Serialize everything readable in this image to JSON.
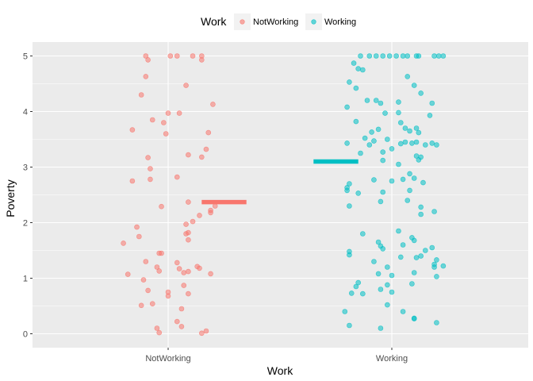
{
  "chart_data": {
    "type": "scatter",
    "subtype": "jitter-strip-with-mean-bars",
    "xlabel": "Work",
    "ylabel": "Poverty",
    "categories": [
      "NotWorking",
      "Working"
    ],
    "yticks": [
      0,
      1,
      2,
      3,
      4,
      5
    ],
    "ylim": [
      -0.25,
      5.25
    ],
    "grid": true,
    "legend": {
      "title": "Work",
      "placement": "top",
      "entries": [
        "NotWorking",
        "Working"
      ]
    },
    "colors": {
      "NotWorking": "#F8766D",
      "Working": "#00BFC4",
      "panel": "#EBEBEB",
      "grid": "#FFFFFF"
    },
    "series": [
      {
        "name": "NotWorking",
        "mean": 2.37,
        "points": [
          {
            "x": -0.1,
            "y": 5.0
          },
          {
            "x": 0.01,
            "y": 5.0
          },
          {
            "x": 0.04,
            "y": 5.0
          },
          {
            "x": 0.11,
            "y": 5.0
          },
          {
            "x": 0.15,
            "y": 4.93
          },
          {
            "x": 0.15,
            "y": 5.0
          },
          {
            "x": -0.09,
            "y": 4.93
          },
          {
            "x": -0.1,
            "y": 4.63
          },
          {
            "x": 0.08,
            "y": 4.47
          },
          {
            "x": -0.12,
            "y": 4.3
          },
          {
            "x": 0.2,
            "y": 4.13
          },
          {
            "x": 0.0,
            "y": 3.97
          },
          {
            "x": 0.05,
            "y": 3.97
          },
          {
            "x": -0.07,
            "y": 3.85
          },
          {
            "x": -0.02,
            "y": 3.8
          },
          {
            "x": -0.16,
            "y": 3.67
          },
          {
            "x": 0.18,
            "y": 3.62
          },
          {
            "x": -0.01,
            "y": 3.6
          },
          {
            "x": 0.17,
            "y": 3.32
          },
          {
            "x": 0.09,
            "y": 3.22
          },
          {
            "x": 0.15,
            "y": 3.18
          },
          {
            "x": -0.09,
            "y": 3.17
          },
          {
            "x": -0.08,
            "y": 2.97
          },
          {
            "x": 0.04,
            "y": 2.82
          },
          {
            "x": -0.08,
            "y": 2.78
          },
          {
            "x": -0.16,
            "y": 2.75
          },
          {
            "x": 0.09,
            "y": 2.37
          },
          {
            "x": 0.21,
            "y": 2.3
          },
          {
            "x": -0.03,
            "y": 2.29
          },
          {
            "x": 0.19,
            "y": 2.22
          },
          {
            "x": 0.19,
            "y": 2.18
          },
          {
            "x": 0.14,
            "y": 2.13
          },
          {
            "x": 0.08,
            "y": 1.97
          },
          {
            "x": 0.11,
            "y": 2.02
          },
          {
            "x": -0.14,
            "y": 1.92
          },
          {
            "x": 0.09,
            "y": 1.82
          },
          {
            "x": 0.08,
            "y": 1.8
          },
          {
            "x": -0.13,
            "y": 1.75
          },
          {
            "x": 0.09,
            "y": 1.69
          },
          {
            "x": -0.2,
            "y": 1.63
          },
          {
            "x": -0.04,
            "y": 1.45
          },
          {
            "x": -0.03,
            "y": 1.45
          },
          {
            "x": -0.1,
            "y": 1.3
          },
          {
            "x": 0.04,
            "y": 1.28
          },
          {
            "x": -0.05,
            "y": 1.2
          },
          {
            "x": 0.13,
            "y": 1.21
          },
          {
            "x": 0.14,
            "y": 1.18
          },
          {
            "x": 0.05,
            "y": 1.17
          },
          {
            "x": 0.09,
            "y": 1.12
          },
          {
            "x": -0.04,
            "y": 1.13
          },
          {
            "x": 0.07,
            "y": 1.1
          },
          {
            "x": 0.19,
            "y": 1.08
          },
          {
            "x": -0.18,
            "y": 1.07
          },
          {
            "x": -0.11,
            "y": 0.97
          },
          {
            "x": 0.07,
            "y": 0.87
          },
          {
            "x": -0.09,
            "y": 0.78
          },
          {
            "x": 0.0,
            "y": 0.75
          },
          {
            "x": 0.09,
            "y": 0.72
          },
          {
            "x": 0.0,
            "y": 0.68
          },
          {
            "x": -0.07,
            "y": 0.54
          },
          {
            "x": -0.12,
            "y": 0.51
          },
          {
            "x": 0.06,
            "y": 0.45
          },
          {
            "x": 0.04,
            "y": 0.22
          },
          {
            "x": 0.06,
            "y": 0.13
          },
          {
            "x": -0.05,
            "y": 0.1
          },
          {
            "x": 0.17,
            "y": 0.05
          },
          {
            "x": -0.04,
            "y": 0.02
          },
          {
            "x": 0.15,
            "y": 0.01
          }
        ]
      },
      {
        "name": "Working",
        "mean": 3.1,
        "points": [
          {
            "x": -0.14,
            "y": 5.0
          },
          {
            "x": -0.1,
            "y": 5.0
          },
          {
            "x": -0.07,
            "y": 5.0
          },
          {
            "x": -0.04,
            "y": 5.0
          },
          {
            "x": -0.01,
            "y": 5.0
          },
          {
            "x": 0.02,
            "y": 5.0
          },
          {
            "x": 0.05,
            "y": 5.0
          },
          {
            "x": 0.07,
            "y": 5.0
          },
          {
            "x": 0.11,
            "y": 5.0
          },
          {
            "x": 0.12,
            "y": 5.0
          },
          {
            "x": 0.19,
            "y": 5.0
          },
          {
            "x": 0.21,
            "y": 5.0
          },
          {
            "x": 0.23,
            "y": 5.0
          },
          {
            "x": -0.17,
            "y": 4.87
          },
          {
            "x": -0.15,
            "y": 4.77
          },
          {
            "x": -0.13,
            "y": 4.75
          },
          {
            "x": 0.07,
            "y": 4.63
          },
          {
            "x": -0.19,
            "y": 4.53
          },
          {
            "x": 0.1,
            "y": 4.47
          },
          {
            "x": -0.16,
            "y": 4.42
          },
          {
            "x": 0.13,
            "y": 4.33
          },
          {
            "x": -0.07,
            "y": 4.2
          },
          {
            "x": -0.11,
            "y": 4.2
          },
          {
            "x": -0.05,
            "y": 4.15
          },
          {
            "x": 0.03,
            "y": 4.17
          },
          {
            "x": 0.18,
            "y": 4.15
          },
          {
            "x": -0.2,
            "y": 4.08
          },
          {
            "x": -0.03,
            "y": 3.97
          },
          {
            "x": 0.03,
            "y": 3.98
          },
          {
            "x": 0.17,
            "y": 3.93
          },
          {
            "x": -0.16,
            "y": 3.82
          },
          {
            "x": 0.04,
            "y": 3.8
          },
          {
            "x": 0.06,
            "y": 3.7
          },
          {
            "x": 0.11,
            "y": 3.7
          },
          {
            "x": -0.06,
            "y": 3.68
          },
          {
            "x": 0.08,
            "y": 3.65
          },
          {
            "x": -0.09,
            "y": 3.63
          },
          {
            "x": 0.12,
            "y": 3.62
          },
          {
            "x": -0.12,
            "y": 3.52
          },
          {
            "x": -0.08,
            "y": 3.47
          },
          {
            "x": -0.02,
            "y": 3.5
          },
          {
            "x": 0.06,
            "y": 3.45
          },
          {
            "x": 0.09,
            "y": 3.43
          },
          {
            "x": 0.11,
            "y": 3.45
          },
          {
            "x": 0.15,
            "y": 3.4
          },
          {
            "x": 0.18,
            "y": 3.43
          },
          {
            "x": -0.1,
            "y": 3.4
          },
          {
            "x": 0.2,
            "y": 3.4
          },
          {
            "x": 0.04,
            "y": 3.42
          },
          {
            "x": -0.2,
            "y": 3.43
          },
          {
            "x": 0.0,
            "y": 3.33
          },
          {
            "x": -0.04,
            "y": 3.27
          },
          {
            "x": -0.14,
            "y": 3.25
          },
          {
            "x": 0.11,
            "y": 3.2
          },
          {
            "x": 0.13,
            "y": 3.18
          },
          {
            "x": 0.12,
            "y": 3.13
          },
          {
            "x": -0.04,
            "y": 3.12
          },
          {
            "x": 0.03,
            "y": 3.05
          },
          {
            "x": 0.08,
            "y": 2.88
          },
          {
            "x": 0.1,
            "y": 2.8
          },
          {
            "x": 0.05,
            "y": 2.78
          },
          {
            "x": -0.08,
            "y": 2.77
          },
          {
            "x": 0.0,
            "y": 2.75
          },
          {
            "x": 0.14,
            "y": 2.72
          },
          {
            "x": -0.19,
            "y": 2.7
          },
          {
            "x": -0.15,
            "y": 2.53
          },
          {
            "x": -0.2,
            "y": 2.63
          },
          {
            "x": -0.2,
            "y": 2.58
          },
          {
            "x": 0.08,
            "y": 2.58
          },
          {
            "x": -0.04,
            "y": 2.55
          },
          {
            "x": -0.05,
            "y": 2.38
          },
          {
            "x": 0.07,
            "y": 2.4
          },
          {
            "x": -0.19,
            "y": 2.3
          },
          {
            "x": 0.13,
            "y": 2.28
          },
          {
            "x": 0.19,
            "y": 2.2
          },
          {
            "x": 0.13,
            "y": 2.15
          },
          {
            "x": 0.03,
            "y": 1.85
          },
          {
            "x": -0.13,
            "y": 1.8
          },
          {
            "x": 0.09,
            "y": 1.73
          },
          {
            "x": 0.1,
            "y": 1.68
          },
          {
            "x": -0.06,
            "y": 1.65
          },
          {
            "x": -0.05,
            "y": 1.58
          },
          {
            "x": -0.04,
            "y": 1.53
          },
          {
            "x": 0.18,
            "y": 1.55
          },
          {
            "x": 0.05,
            "y": 1.6
          },
          {
            "x": 0.15,
            "y": 1.5
          },
          {
            "x": -0.19,
            "y": 1.48
          },
          {
            "x": -0.19,
            "y": 1.42
          },
          {
            "x": 0.13,
            "y": 1.4
          },
          {
            "x": 0.11,
            "y": 1.37
          },
          {
            "x": 0.04,
            "y": 1.38
          },
          {
            "x": 0.2,
            "y": 1.33
          },
          {
            "x": 0.19,
            "y": 1.25
          },
          {
            "x": -0.08,
            "y": 1.3
          },
          {
            "x": 0.23,
            "y": 1.22
          },
          {
            "x": -0.02,
            "y": 1.2
          },
          {
            "x": 0.19,
            "y": 1.2
          },
          {
            "x": -0.06,
            "y": 1.08
          },
          {
            "x": 0.1,
            "y": 1.1
          },
          {
            "x": 0.0,
            "y": 1.05
          },
          {
            "x": 0.2,
            "y": 1.03
          },
          {
            "x": -0.15,
            "y": 0.92
          },
          {
            "x": 0.09,
            "y": 0.9
          },
          {
            "x": -0.02,
            "y": 0.88
          },
          {
            "x": -0.16,
            "y": 0.85
          },
          {
            "x": -0.05,
            "y": 0.8
          },
          {
            "x": -0.18,
            "y": 0.73
          },
          {
            "x": -0.13,
            "y": 0.72
          },
          {
            "x": 0.0,
            "y": 0.75
          },
          {
            "x": -0.02,
            "y": 0.52
          },
          {
            "x": -0.21,
            "y": 0.4
          },
          {
            "x": 0.05,
            "y": 0.4
          },
          {
            "x": 0.1,
            "y": 0.28
          },
          {
            "x": 0.1,
            "y": 0.27
          },
          {
            "x": -0.19,
            "y": 0.15
          },
          {
            "x": 0.2,
            "y": 0.2
          },
          {
            "x": -0.05,
            "y": 0.1
          }
        ]
      }
    ]
  }
}
